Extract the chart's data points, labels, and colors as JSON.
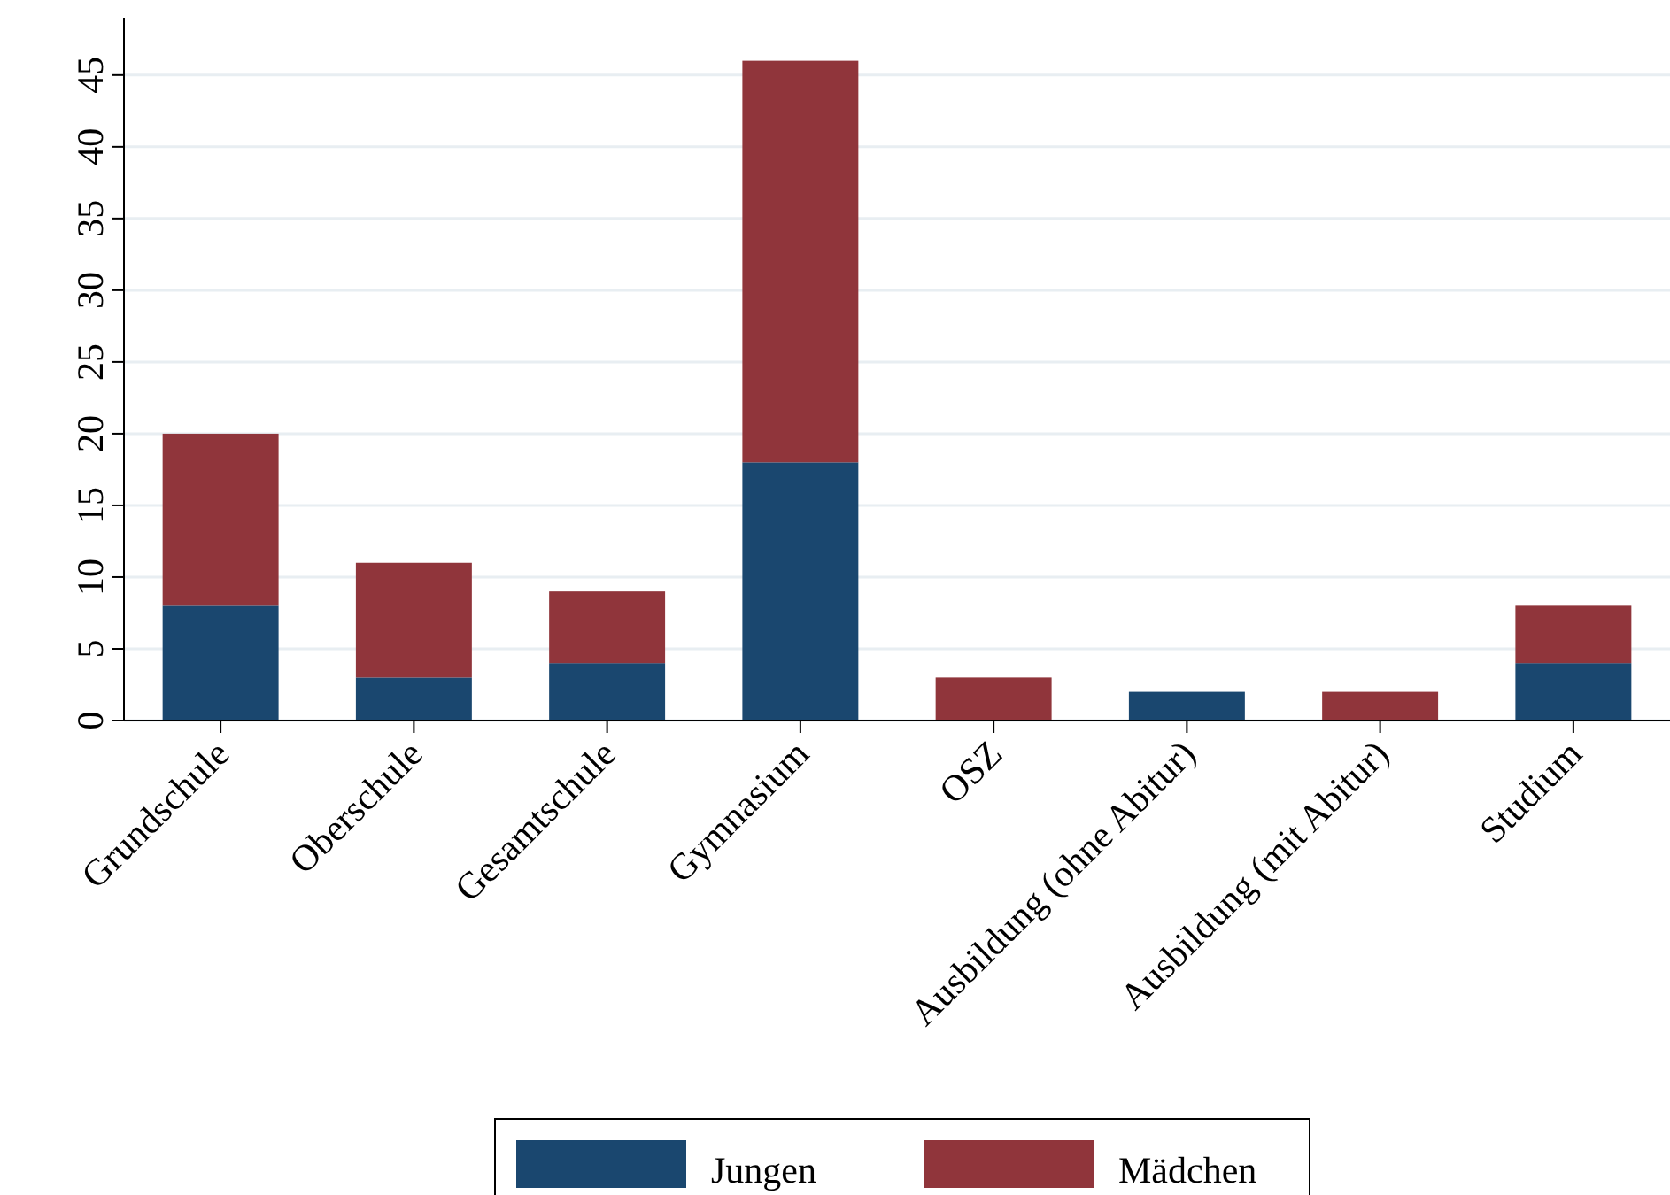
{
  "chart_data": {
    "type": "bar",
    "stacked": true,
    "categories": [
      "Grundschule",
      "Oberschule",
      "Gesamtschule",
      "Gymnasium",
      "OSZ",
      "Ausbildung (ohne Abitur)",
      "Ausbildung (mit Abitur)",
      "Studium"
    ],
    "series": [
      {
        "name": "Jungen",
        "color": "#1a476f",
        "values": [
          8,
          3,
          4,
          18,
          0,
          2,
          0,
          4
        ]
      },
      {
        "name": "Mädchen",
        "color": "#90353b",
        "values": [
          12,
          8,
          5,
          28,
          3,
          0,
          2,
          4
        ]
      }
    ],
    "ylim": [
      0,
      49
    ],
    "yticks": [
      0,
      5,
      10,
      15,
      20,
      25,
      30,
      35,
      40,
      45
    ],
    "grid": "y",
    "legend": "bottom"
  }
}
